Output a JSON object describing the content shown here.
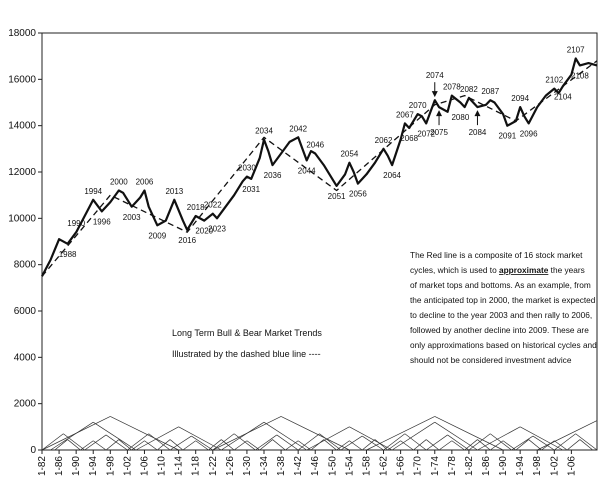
{
  "chart_data": {
    "type": "line",
    "title": "",
    "xlabel": "",
    "ylabel": "",
    "ylim": [
      0,
      18000
    ],
    "xlim": [
      1982,
      2112
    ],
    "grid": false,
    "y_ticks": [
      0,
      2000,
      4000,
      6000,
      8000,
      10000,
      12000,
      14000,
      16000,
      18000
    ],
    "x_ticks": [
      "1-82",
      "1-86",
      "1-90",
      "1-94",
      "1-98",
      "1-02",
      "1-06",
      "1-10",
      "1-14",
      "1-18",
      "1-22",
      "1-26",
      "1-30",
      "1-34",
      "1-38",
      "1-42",
      "1-46",
      "1-50",
      "1-54",
      "1-58",
      "1-62",
      "1-66",
      "1-70",
      "1-74",
      "1-78",
      "1-82",
      "1-86",
      "1-90",
      "1-94",
      "1-98",
      "1-02",
      "1-06"
    ],
    "x_tick_years": [
      1982,
      1986,
      1990,
      1994,
      1998,
      2002,
      2006,
      2010,
      2014,
      2018,
      2022,
      2026,
      2030,
      2034,
      2038,
      2042,
      2046,
      2050,
      2054,
      2058,
      2062,
      2066,
      2070,
      2074,
      2078,
      2082,
      2086,
      2090,
      2094,
      2098,
      2102,
      2106
    ],
    "series": [
      {
        "style": "solid",
        "x": [
          1982,
          1984,
          1986,
          1988,
          1990,
          1992,
          1994,
          1996,
          1998,
          2000,
          2001,
          2003,
          2005,
          2006,
          2007,
          2009,
          2011,
          2013,
          2015,
          2016,
          2018,
          2020,
          2022,
          2023,
          2025,
          2027,
          2029,
          2030,
          2031,
          2033,
          2034,
          2035,
          2036,
          2038,
          2040,
          2042,
          2043,
          2044,
          2045,
          2046,
          2048,
          2050,
          2051,
          2053,
          2054,
          2055,
          2056,
          2058,
          2060,
          2062,
          2063,
          2064,
          2066,
          2067,
          2068,
          2070,
          2071,
          2072,
          2073,
          2074,
          2075,
          2077,
          2078,
          2080,
          2081,
          2082,
          2083,
          2084,
          2086,
          2087,
          2088,
          2090,
          2091,
          2093,
          2094,
          2095,
          2096,
          2098,
          2100,
          2102,
          2103,
          2104,
          2106,
          2107,
          2108,
          2110,
          2112
        ],
        "y": [
          7500,
          8200,
          9100,
          8900,
          9400,
          10100,
          10800,
          10300,
          10700,
          11200,
          11100,
          10500,
          10900,
          11200,
          10500,
          9700,
          9900,
          10800,
          9900,
          9500,
          10100,
          9900,
          10200,
          10000,
          10500,
          11000,
          11600,
          11800,
          11700,
          12600,
          13400,
          12900,
          12300,
          12800,
          13300,
          13500,
          13000,
          12500,
          12900,
          12800,
          12300,
          11700,
          11400,
          11900,
          12400,
          12000,
          11500,
          11900,
          12400,
          13000,
          12700,
          12300,
          13400,
          14100,
          13900,
          14500,
          14400,
          14100,
          14600,
          15100,
          14800,
          14600,
          15300,
          15000,
          14800,
          15200,
          15000,
          14800,
          14900,
          15100,
          15000,
          14500,
          14000,
          14200,
          14800,
          14400,
          14100,
          14800,
          15300,
          15600,
          15400,
          15700,
          16200,
          16900,
          16600,
          16700,
          16600
        ]
      },
      {
        "style": "dashed",
        "x": [
          1982,
          1998,
          2016,
          2034,
          2051,
          2074,
          2081,
          2093,
          2112
        ],
        "y": [
          7500,
          11000,
          9400,
          13500,
          11200,
          14900,
          15300,
          14200,
          16800
        ]
      }
    ],
    "annotations": [
      {
        "x": 1988,
        "y": 8900,
        "text": "1988",
        "pos": "below"
      },
      {
        "x": 1990,
        "y": 9400,
        "text": "1990",
        "pos": "above"
      },
      {
        "x": 1994,
        "y": 10800,
        "text": "1994",
        "pos": "above"
      },
      {
        "x": 1996,
        "y": 10300,
        "text": "1996",
        "pos": "below"
      },
      {
        "x": 2000,
        "y": 11200,
        "text": "2000",
        "pos": "above"
      },
      {
        "x": 2003,
        "y": 10500,
        "text": "2003",
        "pos": "below"
      },
      {
        "x": 2006,
        "y": 11200,
        "text": "2006",
        "pos": "above"
      },
      {
        "x": 2009,
        "y": 9700,
        "text": "2009",
        "pos": "below"
      },
      {
        "x": 2013,
        "y": 10800,
        "text": "2013",
        "pos": "above"
      },
      {
        "x": 2016,
        "y": 9500,
        "text": "2016",
        "pos": "below"
      },
      {
        "x": 2018,
        "y": 10100,
        "text": "2018",
        "pos": "above"
      },
      {
        "x": 2020,
        "y": 9900,
        "text": "2020",
        "pos": "below"
      },
      {
        "x": 2022,
        "y": 10200,
        "text": "2022",
        "pos": "above"
      },
      {
        "x": 2023,
        "y": 10000,
        "text": "2023",
        "pos": "below"
      },
      {
        "x": 2030,
        "y": 11800,
        "text": "2030",
        "pos": "above"
      },
      {
        "x": 2031,
        "y": 11700,
        "text": "2031",
        "pos": "below"
      },
      {
        "x": 2034,
        "y": 13400,
        "text": "2034",
        "pos": "above"
      },
      {
        "x": 2036,
        "y": 12300,
        "text": "2036",
        "pos": "below"
      },
      {
        "x": 2042,
        "y": 13500,
        "text": "2042",
        "pos": "above"
      },
      {
        "x": 2044,
        "y": 12500,
        "text": "2044",
        "pos": "below"
      },
      {
        "x": 2046,
        "y": 12800,
        "text": "2046",
        "pos": "above"
      },
      {
        "x": 2051,
        "y": 11400,
        "text": "2051",
        "pos": "below"
      },
      {
        "x": 2054,
        "y": 12400,
        "text": "2054",
        "pos": "above"
      },
      {
        "x": 2056,
        "y": 11500,
        "text": "2056",
        "pos": "below"
      },
      {
        "x": 2062,
        "y": 13000,
        "text": "2062",
        "pos": "above"
      },
      {
        "x": 2064,
        "y": 12300,
        "text": "2064",
        "pos": "below"
      },
      {
        "x": 2067,
        "y": 14100,
        "text": "2067",
        "pos": "above"
      },
      {
        "x": 2068,
        "y": 13900,
        "text": "2068",
        "pos": "below"
      },
      {
        "x": 2070,
        "y": 14500,
        "text": "2070",
        "pos": "above"
      },
      {
        "x": 2072,
        "y": 14100,
        "text": "2072",
        "pos": "below"
      },
      {
        "x": 2074,
        "y": 15100,
        "text": "2074",
        "pos": "above2"
      },
      {
        "x": 2075,
        "y": 14800,
        "text": "2075",
        "pos": "below2"
      },
      {
        "x": 2078,
        "y": 15300,
        "text": "2078",
        "pos": "above"
      },
      {
        "x": 2080,
        "y": 14800,
        "text": "2080",
        "pos": "below"
      },
      {
        "x": 2082,
        "y": 15200,
        "text": "2082",
        "pos": "above"
      },
      {
        "x": 2084,
        "y": 14800,
        "text": "2084",
        "pos": "below2"
      },
      {
        "x": 2087,
        "y": 15100,
        "text": "2087",
        "pos": "above"
      },
      {
        "x": 2091,
        "y": 14000,
        "text": "2091",
        "pos": "below"
      },
      {
        "x": 2094,
        "y": 14800,
        "text": "2094",
        "pos": "above"
      },
      {
        "x": 2096,
        "y": 14100,
        "text": "2096",
        "pos": "below"
      },
      {
        "x": 2102,
        "y": 15600,
        "text": "2102",
        "pos": "above"
      },
      {
        "x": 2104,
        "y": 15700,
        "text": "2104",
        "pos": "below"
      },
      {
        "x": 2107,
        "y": 16900,
        "text": "2107",
        "pos": "above"
      },
      {
        "x": 2108,
        "y": 16600,
        "text": "2108",
        "pos": "below"
      }
    ],
    "arrows": [
      {
        "x": 2074,
        "y": 15100,
        "dir": "down"
      },
      {
        "x": 2075,
        "y": 14800,
        "dir": "up"
      },
      {
        "x": 2084,
        "y": 14800,
        "dir": "up"
      }
    ],
    "cycles": [
      {
        "start": 1982,
        "peak": 1998,
        "end": 2014,
        "amp": 1450
      },
      {
        "start": 2022,
        "peak": 2038,
        "end": 2054,
        "amp": 1450
      },
      {
        "start": 2058,
        "peak": 2074,
        "end": 2090,
        "amp": 1450
      },
      {
        "start": 2098,
        "peak": 2114,
        "end": 2130,
        "amp": 1450
      },
      {
        "start": 1984,
        "peak": 1994,
        "end": 2004,
        "amp": 1200
      },
      {
        "start": 2004,
        "peak": 2014,
        "end": 2024,
        "amp": 1000
      },
      {
        "start": 2024,
        "peak": 2034,
        "end": 2044,
        "amp": 1200
      },
      {
        "start": 2044,
        "peak": 2054,
        "end": 2064,
        "amp": 1000
      },
      {
        "start": 2064,
        "peak": 2074,
        "end": 2084,
        "amp": 1200
      },
      {
        "start": 2084,
        "peak": 2094,
        "end": 2104,
        "amp": 1000
      },
      {
        "start": 1982,
        "peak": 1987,
        "end": 1992,
        "amp": 700
      },
      {
        "start": 1992,
        "peak": 1997,
        "end": 2002,
        "amp": 650
      },
      {
        "start": 2002,
        "peak": 2007,
        "end": 2012,
        "amp": 700
      },
      {
        "start": 2012,
        "peak": 2017,
        "end": 2022,
        "amp": 600
      },
      {
        "start": 2022,
        "peak": 2027,
        "end": 2032,
        "amp": 700
      },
      {
        "start": 2032,
        "peak": 2037,
        "end": 2042,
        "amp": 650
      },
      {
        "start": 2042,
        "peak": 2047,
        "end": 2052,
        "amp": 700
      },
      {
        "start": 2052,
        "peak": 2057,
        "end": 2062,
        "amp": 600
      },
      {
        "start": 2062,
        "peak": 2067,
        "end": 2072,
        "amp": 700
      },
      {
        "start": 2072,
        "peak": 2077,
        "end": 2082,
        "amp": 650
      },
      {
        "start": 2082,
        "peak": 2087,
        "end": 2092,
        "amp": 700
      },
      {
        "start": 2092,
        "peak": 2097,
        "end": 2102,
        "amp": 600
      },
      {
        "start": 2102,
        "peak": 2107,
        "end": 2112,
        "amp": 700
      },
      {
        "start": 1985,
        "peak": 1988,
        "end": 1991,
        "amp": 450
      },
      {
        "start": 1991,
        "peak": 1994,
        "end": 1997,
        "amp": 400
      },
      {
        "start": 1997,
        "peak": 2000,
        "end": 2003,
        "amp": 450
      },
      {
        "start": 2003,
        "peak": 2006,
        "end": 2009,
        "amp": 400
      },
      {
        "start": 2009,
        "peak": 2012,
        "end": 2015,
        "amp": 450
      },
      {
        "start": 2015,
        "peak": 2018,
        "end": 2021,
        "amp": 400
      },
      {
        "start": 2021,
        "peak": 2024,
        "end": 2027,
        "amp": 450
      },
      {
        "start": 2027,
        "peak": 2030,
        "end": 2033,
        "amp": 400
      },
      {
        "start": 2033,
        "peak": 2036,
        "end": 2039,
        "amp": 450
      },
      {
        "start": 2039,
        "peak": 2042,
        "end": 2045,
        "amp": 400
      },
      {
        "start": 2045,
        "peak": 2048,
        "end": 2051,
        "amp": 450
      },
      {
        "start": 2051,
        "peak": 2054,
        "end": 2057,
        "amp": 400
      },
      {
        "start": 2057,
        "peak": 2060,
        "end": 2063,
        "amp": 450
      },
      {
        "start": 2063,
        "peak": 2066,
        "end": 2069,
        "amp": 400
      },
      {
        "start": 2069,
        "peak": 2072,
        "end": 2075,
        "amp": 450
      },
      {
        "start": 2075,
        "peak": 2078,
        "end": 2081,
        "amp": 400
      },
      {
        "start": 2081,
        "peak": 2084,
        "end": 2087,
        "amp": 450
      },
      {
        "start": 2087,
        "peak": 2090,
        "end": 2093,
        "amp": 400
      },
      {
        "start": 2093,
        "peak": 2096,
        "end": 2099,
        "amp": 450
      },
      {
        "start": 2099,
        "peak": 2102,
        "end": 2105,
        "amp": 400
      },
      {
        "start": 2105,
        "peak": 2108,
        "end": 2111,
        "amp": 450
      }
    ],
    "legend": {
      "line1": "Long Term Bull & Bear Market Trends",
      "line2": "Illustrated by the dashed blue line ----"
    },
    "note": {
      "lines": [
        [
          "The Red line is a composite of 16 stock market"
        ],
        [
          "cycles, which is used to ",
          "approximate",
          " the years"
        ],
        [
          "of market tops and bottoms.  As an example, from"
        ],
        [
          "the anticipated top in 2000, the market is expected"
        ],
        [
          "to decline to the year 2003 and then rally to 2006,"
        ],
        [
          "followed by another decline into 2009.  These are"
        ],
        [
          "only approximations based on historical cycles and"
        ],
        [
          "should not be considered investment advice"
        ]
      ]
    }
  }
}
